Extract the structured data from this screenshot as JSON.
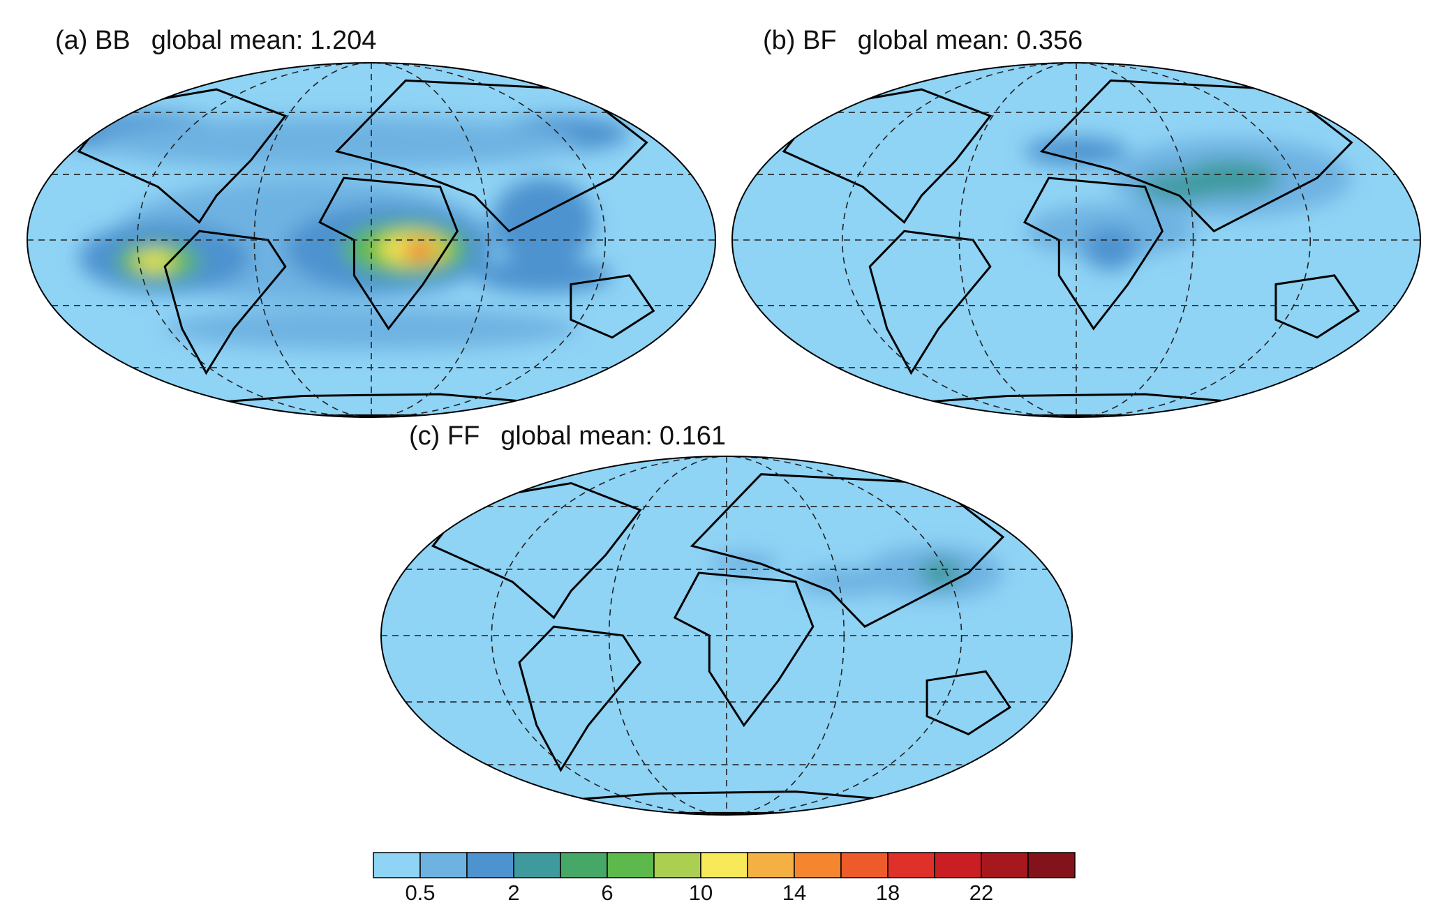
{
  "panels": [
    {
      "label": "(a) BB",
      "mean_label": "global mean:",
      "mean": 1.204
    },
    {
      "label": "(b) BF",
      "mean_label": "global mean:",
      "mean": 0.356
    },
    {
      "label": "(c) FF",
      "mean_label": "global mean:",
      "mean": 0.161
    }
  ],
  "colorbar": {
    "colors": [
      "#8fd3f5",
      "#6eb2e2",
      "#4d93cf",
      "#3e9a9d",
      "#46a866",
      "#5db94b",
      "#abcf51",
      "#f7e95a",
      "#f4b043",
      "#f5862f",
      "#ee5b2a",
      "#df302a",
      "#c81e24",
      "#a6181d",
      "#84121a"
    ],
    "labels": [
      "0.5",
      "2",
      "6",
      "10",
      "14",
      "18",
      "22"
    ]
  }
}
